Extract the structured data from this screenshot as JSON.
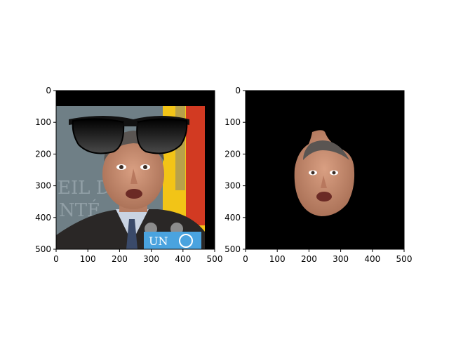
{
  "figure": {
    "background": "#ffffff"
  },
  "chart_data": [
    {
      "type": "image",
      "description": "left panel",
      "xlim": [
        0,
        500
      ],
      "ylim": [
        500,
        0
      ],
      "x_ticks": [
        0,
        100,
        200,
        300,
        400,
        500
      ],
      "y_ticks": [
        0,
        100,
        200,
        300,
        400,
        500
      ],
      "x_tick_labels": [
        "0",
        "100",
        "200",
        "300",
        "400",
        "500"
      ],
      "y_tick_labels": [
        "0",
        "100",
        "200",
        "300",
        "400",
        "500"
      ],
      "sign_text": "UN",
      "colors": {
        "frame": "#000000",
        "background_flag": "#f2c417",
        "flag_red": "#d23a22",
        "wall": "#6f7f86"
      }
    },
    {
      "type": "image",
      "description": "right panel",
      "xlim": [
        0,
        500
      ],
      "ylim": [
        500,
        0
      ],
      "x_ticks": [
        0,
        100,
        200,
        300,
        400,
        500
      ],
      "y_ticks": [
        0,
        100,
        200,
        300,
        400,
        500
      ],
      "x_tick_labels": [
        "0",
        "100",
        "200",
        "300",
        "400",
        "500"
      ],
      "y_tick_labels": [
        "0",
        "100",
        "200",
        "300",
        "400",
        "500"
      ],
      "colors": {
        "background": "#000000",
        "skin": "#c98f73"
      }
    }
  ]
}
